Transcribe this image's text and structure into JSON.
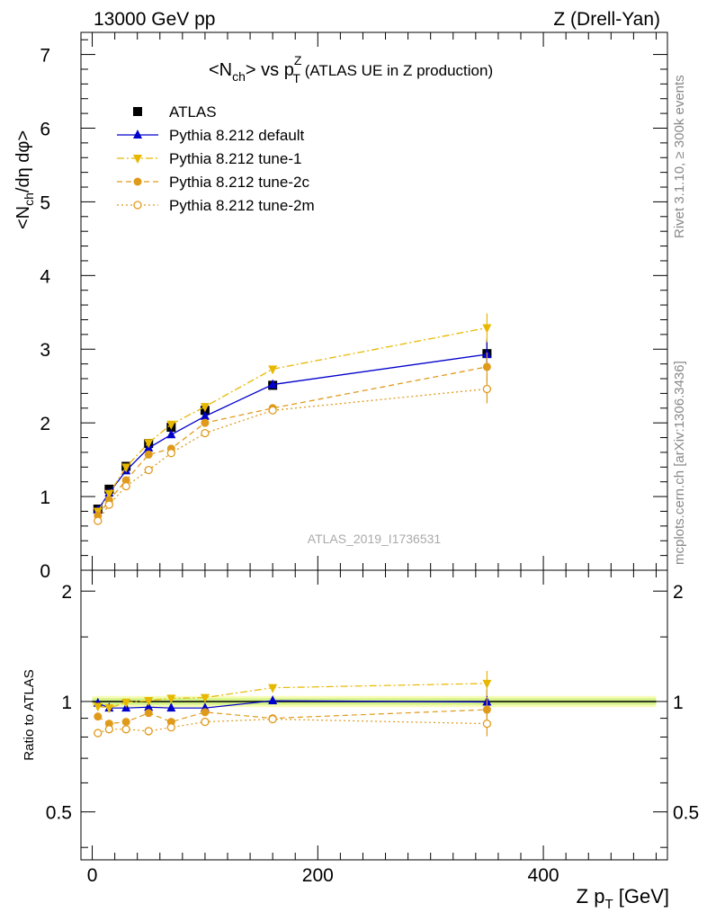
{
  "header": {
    "left": "13000 GeV pp",
    "right": "Z (Drell-Yan)"
  },
  "side": {
    "rivet": "Rivet 3.1.10, ≥ 300k events",
    "mcplots": "mcplots.cern.ch [arXiv:1306.3436]"
  },
  "watermark": "ATLAS_2019_I1736531",
  "chart_data": {
    "type": "scatter",
    "title": {
      "main": "<N",
      "main_sub": "ch",
      "main_mid": "> vs p",
      "main_sup": "Z",
      "main_sub2": "T",
      "rest": " (ATLAS UE in Z production)"
    },
    "upper": {
      "ylabel": "<N_ch/dη dφ>",
      "ylim": [
        0,
        7.3
      ],
      "yticks": [
        "0",
        "1",
        "2",
        "3",
        "4",
        "5",
        "6",
        "7"
      ]
    },
    "lower": {
      "ylabel": "Ratio to ATLAS",
      "ylim": [
        0.37,
        2.28
      ],
      "yticks": [
        "0.5",
        "1",
        "2"
      ]
    },
    "xlabel": "Z p_T [GeV]",
    "xlim": [
      -10,
      510
    ],
    "xticks": [
      "0",
      "200",
      "400"
    ],
    "x": [
      5,
      15,
      30,
      50,
      70,
      100,
      160,
      350
    ],
    "series": [
      {
        "name": "ATLAS",
        "color": "#000000",
        "marker": "square",
        "values": [
          0.83,
          1.1,
          1.41,
          1.72,
          1.94,
          2.17,
          2.51,
          2.94
        ]
      },
      {
        "name": "Pythia 8.212 default",
        "color": "#0000cc",
        "marker": "triangle-up",
        "line": "solid",
        "values": [
          0.82,
          1.05,
          1.35,
          1.66,
          1.84,
          2.09,
          2.52,
          2.93
        ],
        "ratio": [
          0.99,
          0.96,
          0.96,
          0.965,
          0.96,
          0.96,
          1.005,
          0.997
        ]
      },
      {
        "name": "Pythia 8.212 tune-1",
        "color": "#e8b800",
        "marker": "triangle-down",
        "line": "dashdot",
        "values": [
          0.8,
          1.04,
          1.4,
          1.73,
          1.98,
          2.22,
          2.73,
          3.29
        ],
        "ratio": [
          0.97,
          0.96,
          0.995,
          1.005,
          1.02,
          1.025,
          1.09,
          1.12
        ]
      },
      {
        "name": "Pythia 8.212 tune-2c",
        "color": "#e09a1a",
        "marker": "circle",
        "line": "dashed",
        "values": [
          0.74,
          0.95,
          1.22,
          1.57,
          1.65,
          2.0,
          2.2,
          2.76
        ],
        "ratio": [
          0.91,
          0.87,
          0.88,
          0.93,
          0.88,
          0.935,
          0.9,
          0.95
        ]
      },
      {
        "name": "Pythia 8.212 tune-2m",
        "color": "#e09a1a",
        "marker": "circle-open",
        "line": "dotted",
        "values": [
          0.67,
          0.89,
          1.14,
          1.36,
          1.59,
          1.86,
          2.17,
          2.46
        ],
        "ratio": [
          0.82,
          0.84,
          0.84,
          0.83,
          0.85,
          0.88,
          0.895,
          0.87
        ]
      }
    ],
    "legend": "top-left",
    "grid": false
  }
}
